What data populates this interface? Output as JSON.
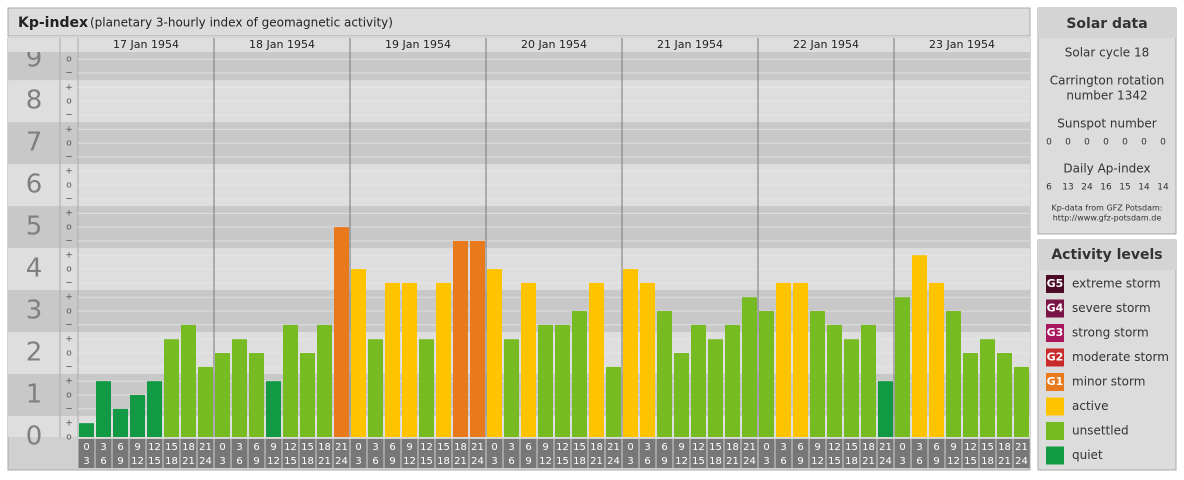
{
  "chart_data": {
    "type": "bar",
    "title": "Kp-index",
    "subtitle": "(planetary 3-hourly index of geomagnetic activity)",
    "days": [
      "17 Jan 1954",
      "18 Jan 1954",
      "19 Jan 1954",
      "20 Jan 1954",
      "21 Jan 1954",
      "22 Jan 1954",
      "23 Jan 1954"
    ],
    "hours_from": [
      0,
      3,
      6,
      9,
      12,
      15,
      18,
      21
    ],
    "hours_to": [
      3,
      6,
      9,
      12,
      15,
      18,
      21,
      24
    ],
    "values": [
      0.33,
      1.33,
      0.67,
      1,
      1.33,
      2.33,
      2.67,
      1.67,
      2,
      2.33,
      2,
      1.33,
      2.67,
      2,
      2.67,
      5,
      4,
      2.33,
      3.67,
      3.67,
      2.33,
      3.67,
      4.67,
      4.67,
      4,
      2.33,
      3.67,
      2.67,
      2.67,
      3,
      3.67,
      1.67,
      4,
      3.67,
      3,
      2,
      2.67,
      2.33,
      2.67,
      3.33,
      3,
      3.67,
      3.67,
      3,
      2.67,
      2.33,
      2.67,
      1.33,
      3.33,
      4.33,
      3.67,
      3,
      2,
      2.33,
      2,
      1.67
    ],
    "colors": [
      "#119944",
      "#119944",
      "#119944",
      "#119944",
      "#119944",
      "#77bb22",
      "#77bb22",
      "#77bb22",
      "#77bb22",
      "#77bb22",
      "#77bb22",
      "#119944",
      "#77bb22",
      "#77bb22",
      "#77bb22",
      "#e87a1d",
      "#ffc300",
      "#77bb22",
      "#ffc300",
      "#ffc300",
      "#77bb22",
      "#ffc300",
      "#e87a1d",
      "#e87a1d",
      "#ffc300",
      "#77bb22",
      "#ffc300",
      "#77bb22",
      "#77bb22",
      "#77bb22",
      "#ffc300",
      "#77bb22",
      "#ffc300",
      "#ffc300",
      "#77bb22",
      "#77bb22",
      "#77bb22",
      "#77bb22",
      "#77bb22",
      "#77bb22",
      "#77bb22",
      "#ffc300",
      "#ffc300",
      "#77bb22",
      "#77bb22",
      "#77bb22",
      "#77bb22",
      "#119944",
      "#77bb22",
      "#ffc300",
      "#ffc300",
      "#77bb22",
      "#77bb22",
      "#77bb22",
      "#77bb22",
      "#77bb22"
    ],
    "ylim": [
      0,
      9.17
    ],
    "yticks": [
      0,
      1,
      2,
      3,
      4,
      5,
      6,
      7,
      8,
      9
    ],
    "ysubticks": [
      {
        "value": 0,
        "label": "o"
      },
      {
        "value": 0.33,
        "label": "+"
      },
      {
        "value": 0.67,
        "label": "−"
      },
      {
        "value": 1,
        "label": "o"
      },
      {
        "value": 1.33,
        "label": "+"
      },
      {
        "value": 1.67,
        "label": "−"
      },
      {
        "value": 2,
        "label": "o"
      },
      {
        "value": 2.33,
        "label": "+"
      },
      {
        "value": 2.67,
        "label": "−"
      },
      {
        "value": 3,
        "label": "o"
      },
      {
        "value": 3.33,
        "label": "+"
      },
      {
        "value": 3.67,
        "label": "−"
      },
      {
        "value": 4,
        "label": "o"
      },
      {
        "value": 4.33,
        "label": "+"
      },
      {
        "value": 4.67,
        "label": "−"
      },
      {
        "value": 5,
        "label": "o"
      },
      {
        "value": 5.33,
        "label": "+"
      },
      {
        "value": 5.67,
        "label": "−"
      },
      {
        "value": 6,
        "label": "o"
      },
      {
        "value": 6.33,
        "label": "+"
      },
      {
        "value": 6.67,
        "label": "−"
      },
      {
        "value": 7,
        "label": "o"
      },
      {
        "value": 7.33,
        "label": "+"
      },
      {
        "value": 7.67,
        "label": "−"
      },
      {
        "value": 8,
        "label": "o"
      },
      {
        "value": 8.33,
        "label": "+"
      },
      {
        "value": 8.67,
        "label": "−"
      },
      {
        "value": 9,
        "label": "o"
      }
    ],
    "solar": {
      "title": "Solar data",
      "cycle": "Solar cycle 18",
      "rotation": [
        "Carrington rotation",
        "number 1342"
      ],
      "sunspot_title": "Sunspot number",
      "sunspot": [
        0,
        0,
        0,
        0,
        0,
        0,
        0
      ],
      "ap_title": "Daily Ap-index",
      "ap": [
        6,
        13,
        24,
        16,
        15,
        14,
        14
      ],
      "source": [
        "Kp-data from GFZ Potsdam:",
        "http://www.gfz-potsdam.de"
      ]
    },
    "levels": {
      "title": "Activity levels",
      "items": [
        {
          "badge": "G5",
          "name": "extreme storm",
          "color": "#4d0a26"
        },
        {
          "badge": "G4",
          "name": "severe storm",
          "color": "#7a1446"
        },
        {
          "badge": "G3",
          "name": "strong storm",
          "color": "#a8175e"
        },
        {
          "badge": "G2",
          "name": "moderate storm",
          "color": "#c92a2a"
        },
        {
          "badge": "G1",
          "name": "minor storm",
          "color": "#e87a1d"
        },
        {
          "name": "active",
          "color": "#ffc300"
        },
        {
          "name": "unsettled",
          "color": "#77bb22"
        },
        {
          "name": "quiet",
          "color": "#119944"
        }
      ]
    }
  }
}
